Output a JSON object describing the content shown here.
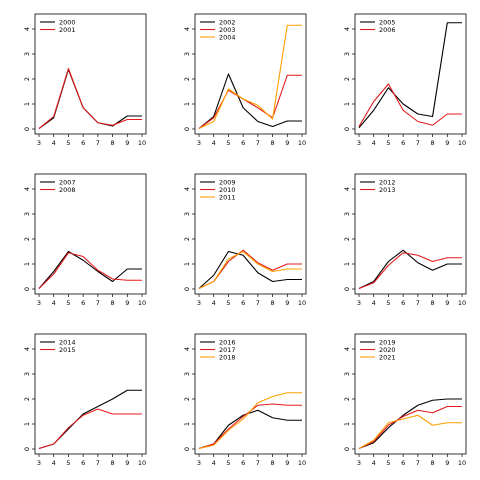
{
  "chart_data": [
    {
      "type": "line",
      "x": [
        3,
        4,
        5,
        6,
        7,
        8,
        9,
        10
      ],
      "xticks": [
        "3",
        "4",
        "5",
        "6",
        "7",
        "8",
        "9",
        "10"
      ],
      "yticks": [
        "0",
        "1",
        "2",
        "3",
        "4"
      ],
      "xlim": [
        3,
        10
      ],
      "ylim": [
        0,
        4.4
      ],
      "grid": false,
      "legend_position": "top-left",
      "series": [
        {
          "name": "2000",
          "color": "#000000",
          "values": [
            0.02,
            0.45,
            2.38,
            0.85,
            0.25,
            0.12,
            0.52,
            0.52
          ]
        },
        {
          "name": "2001",
          "color": "#e41a1c",
          "values": [
            0.02,
            0.5,
            2.42,
            0.85,
            0.25,
            0.15,
            0.38,
            0.38
          ]
        }
      ]
    },
    {
      "type": "line",
      "x": [
        3,
        4,
        5,
        6,
        7,
        8,
        9,
        10
      ],
      "xticks": [
        "3",
        "4",
        "5",
        "6",
        "7",
        "8",
        "9",
        "10"
      ],
      "yticks": [
        "0",
        "1",
        "2",
        "3",
        "4"
      ],
      "xlim": [
        3,
        10
      ],
      "ylim": [
        0,
        4.4
      ],
      "grid": false,
      "legend_position": "top-left",
      "series": [
        {
          "name": "2002",
          "color": "#000000",
          "values": [
            0.02,
            0.5,
            2.2,
            0.85,
            0.3,
            0.1,
            0.32,
            0.32
          ]
        },
        {
          "name": "2003",
          "color": "#e41a1c",
          "values": [
            0.02,
            0.45,
            1.55,
            1.2,
            0.85,
            0.45,
            2.15,
            2.15
          ]
        },
        {
          "name": "2004",
          "color": "#ff9f00",
          "values": [
            0.02,
            0.3,
            1.6,
            1.2,
            0.95,
            0.4,
            4.15,
            4.15
          ]
        }
      ]
    },
    {
      "type": "line",
      "x": [
        3,
        4,
        5,
        6,
        7,
        8,
        9,
        10
      ],
      "xticks": [
        "3",
        "4",
        "5",
        "6",
        "7",
        "8",
        "9",
        "10"
      ],
      "yticks": [
        "0",
        "1",
        "2",
        "3",
        "4"
      ],
      "xlim": [
        3,
        10
      ],
      "ylim": [
        0,
        4.4
      ],
      "grid": false,
      "legend_position": "top-left",
      "series": [
        {
          "name": "2005",
          "color": "#000000",
          "values": [
            0.05,
            0.75,
            1.65,
            1.0,
            0.6,
            0.5,
            4.25,
            4.25
          ]
        },
        {
          "name": "2006",
          "color": "#e41a1c",
          "values": [
            0.1,
            1.1,
            1.8,
            0.75,
            0.3,
            0.15,
            0.6,
            0.6
          ]
        }
      ]
    },
    {
      "type": "line",
      "x": [
        3,
        4,
        5,
        6,
        7,
        8,
        9,
        10
      ],
      "xticks": [
        "3",
        "4",
        "5",
        "6",
        "7",
        "8",
        "9",
        "10"
      ],
      "yticks": [
        "0",
        "1",
        "2",
        "3",
        "4"
      ],
      "xlim": [
        3,
        10
      ],
      "ylim": [
        0,
        4.4
      ],
      "grid": false,
      "legend_position": "top-left",
      "series": [
        {
          "name": "2007",
          "color": "#000000",
          "values": [
            0.02,
            0.7,
            1.5,
            1.15,
            0.7,
            0.3,
            0.8,
            0.8
          ]
        },
        {
          "name": "2008",
          "color": "#e41a1c",
          "values": [
            0.02,
            0.6,
            1.45,
            1.3,
            0.75,
            0.4,
            0.35,
            0.35
          ]
        }
      ]
    },
    {
      "type": "line",
      "x": [
        3,
        4,
        5,
        6,
        7,
        8,
        9,
        10
      ],
      "xticks": [
        "3",
        "4",
        "5",
        "6",
        "7",
        "8",
        "9",
        "10"
      ],
      "yticks": [
        "0",
        "1",
        "2",
        "3",
        "4"
      ],
      "xlim": [
        3,
        10
      ],
      "ylim": [
        0,
        4.4
      ],
      "grid": false,
      "legend_position": "top-left",
      "series": [
        {
          "name": "2009",
          "color": "#000000",
          "values": [
            0.02,
            0.55,
            1.5,
            1.35,
            0.65,
            0.3,
            0.38,
            0.38
          ]
        },
        {
          "name": "2010",
          "color": "#e41a1c",
          "values": [
            0.02,
            0.3,
            1.1,
            1.55,
            1.05,
            0.75,
            1.0,
            1.0
          ]
        },
        {
          "name": "2011",
          "color": "#ff9f00",
          "values": [
            0.02,
            0.3,
            1.2,
            1.5,
            1.0,
            0.7,
            0.8,
            0.8
          ]
        }
      ]
    },
    {
      "type": "line",
      "x": [
        3,
        4,
        5,
        6,
        7,
        8,
        9,
        10
      ],
      "xticks": [
        "3",
        "4",
        "5",
        "6",
        "7",
        "8",
        "9",
        "10"
      ],
      "yticks": [
        "0",
        "1",
        "2",
        "3",
        "4"
      ],
      "xlim": [
        3,
        10
      ],
      "ylim": [
        0,
        4.4
      ],
      "grid": false,
      "legend_position": "top-left",
      "series": [
        {
          "name": "2012",
          "color": "#000000",
          "values": [
            0.02,
            0.3,
            1.1,
            1.55,
            1.05,
            0.75,
            1.0,
            1.0
          ]
        },
        {
          "name": "2013",
          "color": "#e41a1c",
          "values": [
            0.02,
            0.25,
            0.95,
            1.45,
            1.35,
            1.1,
            1.25,
            1.25
          ]
        }
      ]
    },
    {
      "type": "line",
      "x": [
        3,
        4,
        5,
        6,
        7,
        8,
        9,
        10
      ],
      "xticks": [
        "3",
        "4",
        "5",
        "6",
        "7",
        "8",
        "9",
        "10"
      ],
      "yticks": [
        "0",
        "1",
        "2",
        "3",
        "4"
      ],
      "xlim": [
        3,
        10
      ],
      "ylim": [
        0,
        4.4
      ],
      "grid": false,
      "legend_position": "top-left",
      "series": [
        {
          "name": "2014",
          "color": "#000000",
          "values": [
            0.02,
            0.2,
            0.8,
            1.4,
            1.7,
            2.0,
            2.35,
            2.35
          ]
        },
        {
          "name": "2015",
          "color": "#e41a1c",
          "values": [
            0.02,
            0.2,
            0.85,
            1.35,
            1.6,
            1.4,
            1.4,
            1.4
          ]
        }
      ]
    },
    {
      "type": "line",
      "x": [
        3,
        4,
        5,
        6,
        7,
        8,
        9,
        10
      ],
      "xticks": [
        "3",
        "4",
        "5",
        "6",
        "7",
        "8",
        "9",
        "10"
      ],
      "yticks": [
        "0",
        "1",
        "2",
        "3",
        "4"
      ],
      "xlim": [
        3,
        10
      ],
      "ylim": [
        0,
        4.4
      ],
      "grid": false,
      "legend_position": "top-left",
      "series": [
        {
          "name": "2016",
          "color": "#000000",
          "values": [
            0.02,
            0.2,
            0.95,
            1.35,
            1.55,
            1.25,
            1.15,
            1.15
          ]
        },
        {
          "name": "2017",
          "color": "#e41a1c",
          "values": [
            0.02,
            0.2,
            0.8,
            1.3,
            1.75,
            1.8,
            1.75,
            1.75
          ]
        },
        {
          "name": "2018",
          "color": "#ff9f00",
          "values": [
            0.02,
            0.15,
            0.75,
            1.2,
            1.85,
            2.1,
            2.25,
            2.25
          ]
        }
      ]
    },
    {
      "type": "line",
      "x": [
        3,
        4,
        5,
        6,
        7,
        8,
        9,
        10
      ],
      "xticks": [
        "3",
        "4",
        "5",
        "6",
        "7",
        "8",
        "9",
        "10"
      ],
      "yticks": [
        "0",
        "1",
        "2",
        "3",
        "4"
      ],
      "xlim": [
        3,
        10
      ],
      "ylim": [
        0,
        4.4
      ],
      "grid": false,
      "legend_position": "top-left",
      "series": [
        {
          "name": "2019",
          "color": "#000000",
          "values": [
            0.02,
            0.25,
            0.85,
            1.35,
            1.75,
            1.95,
            2.0,
            2.0
          ]
        },
        {
          "name": "2020",
          "color": "#e41a1c",
          "values": [
            0.02,
            0.3,
            0.95,
            1.3,
            1.55,
            1.45,
            1.7,
            1.7
          ]
        },
        {
          "name": "2021",
          "color": "#ff9f00",
          "values": [
            0.02,
            0.35,
            1.05,
            1.2,
            1.35,
            0.95,
            1.05,
            1.05
          ]
        }
      ]
    }
  ]
}
